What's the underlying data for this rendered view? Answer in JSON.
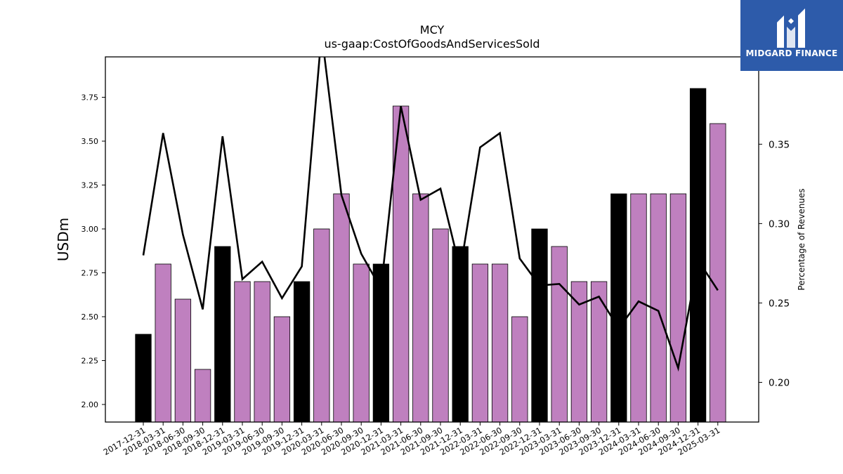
{
  "brand": {
    "name": "MIDGARD FINANCE",
    "bg_color": "#2d5baa",
    "icon": "midgard-logo-icon"
  },
  "chart_data": {
    "type": "bar",
    "title": "MCY",
    "subtitle": "us-gaap:CostOfGoodsAndServicesSold",
    "ylabel": "USDm",
    "ylabel_right": "Percentage of Revenues",
    "ylim": [
      1.9,
      3.98
    ],
    "ylim_right": [
      0.175,
      0.405
    ],
    "yticks": [
      "2.00",
      "2.25",
      "2.50",
      "2.75",
      "3.00",
      "3.25",
      "3.50",
      "3.75"
    ],
    "yticks_right": [
      "0.20",
      "0.25",
      "0.30",
      "0.35"
    ],
    "grid": false,
    "categories": [
      "2017-12-31",
      "2018-03-31",
      "2018-06-30",
      "2018-09-30",
      "2018-12-31",
      "2019-03-31",
      "2019-06-30",
      "2019-09-30",
      "2019-12-31",
      "2020-03-31",
      "2020-06-30",
      "2020-09-30",
      "2020-12-31",
      "2021-03-31",
      "2021-06-30",
      "2021-09-30",
      "2021-12-31",
      "2022-03-31",
      "2022-06-30",
      "2022-09-30",
      "2022-12-31",
      "2023-03-31",
      "2023-06-30",
      "2023-09-30",
      "2023-12-31",
      "2024-03-31",
      "2024-06-30",
      "2024-09-30",
      "2024-12-31",
      "2025-03-31"
    ],
    "series": [
      {
        "kind": "bar",
        "values": [
          2.4,
          2.8,
          2.6,
          2.2,
          2.9,
          2.7,
          2.7,
          2.5,
          2.7,
          3.0,
          3.2,
          2.8,
          2.8,
          3.7,
          3.2,
          3.0,
          2.9,
          2.8,
          2.8,
          2.5,
          3.0,
          2.9,
          2.7,
          2.7,
          3.2,
          3.2,
          3.2,
          3.2,
          3.8,
          3.6
        ],
        "annual_flags": [
          1,
          0,
          0,
          0,
          1,
          0,
          0,
          0,
          1,
          0,
          0,
          0,
          1,
          0,
          0,
          0,
          1,
          0,
          0,
          0,
          1,
          0,
          0,
          0,
          1,
          0,
          0,
          0,
          1,
          0
        ],
        "color_annual": "#000000",
        "color_quarterly": "#bf80bf"
      },
      {
        "kind": "line",
        "axis": "right",
        "values": [
          0.28,
          0.357,
          0.293,
          0.246,
          0.355,
          0.265,
          0.276,
          0.253,
          0.273,
          0.42,
          0.318,
          0.281,
          0.259,
          0.374,
          0.315,
          0.322,
          0.271,
          0.348,
          0.357,
          0.278,
          0.261,
          0.262,
          0.249,
          0.254,
          0.234,
          0.251,
          0.245,
          0.209,
          0.277,
          0.258
        ],
        "color": "#000000"
      }
    ]
  }
}
